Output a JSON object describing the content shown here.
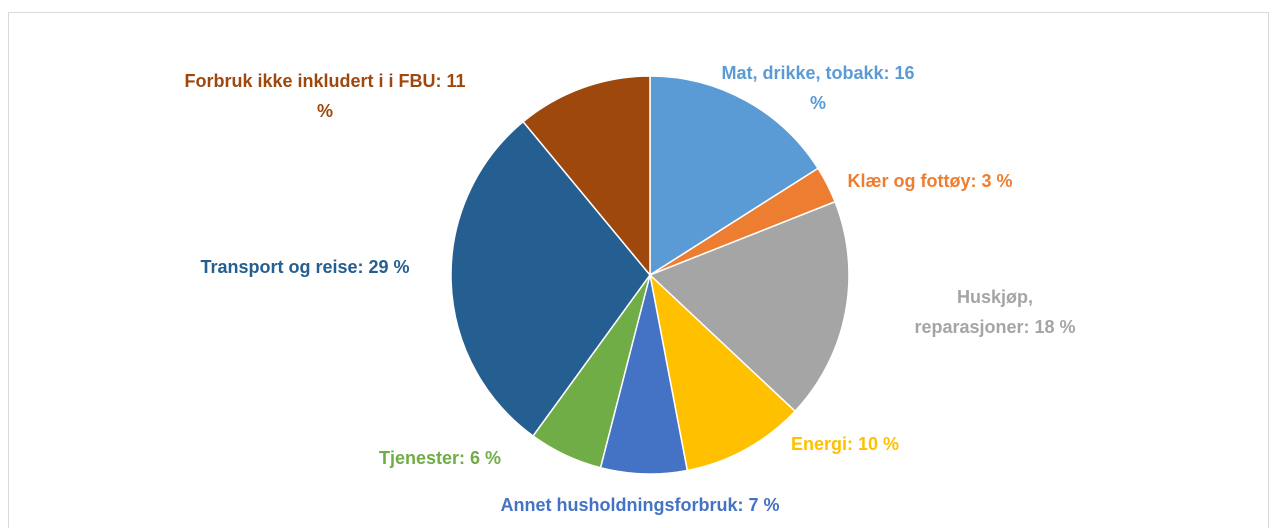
{
  "chart_data": {
    "type": "pie",
    "categories": [
      "Mat, drikke, tobakk:",
      "Klær og fottøy:",
      "Huskjøp, reparasjoner:",
      "Energi:",
      "Annet husholdningsforbruk:",
      "Tjenester:",
      "Transport og reise:",
      "Forbruk ikke inkludert i i FBU:"
    ],
    "values": [
      16,
      3,
      18,
      10,
      7,
      6,
      29,
      11
    ],
    "value_labels": [
      "16 %",
      "3 %",
      "18 %",
      "10 %",
      "7 %",
      "6 %",
      "29 %",
      "11 %"
    ],
    "colors": [
      "#5b9bd5",
      "#ed7d31",
      "#a5a5a5",
      "#ffc000",
      "#4472c4",
      "#70ad47",
      "#255e91",
      "#9e480e"
    ]
  }
}
